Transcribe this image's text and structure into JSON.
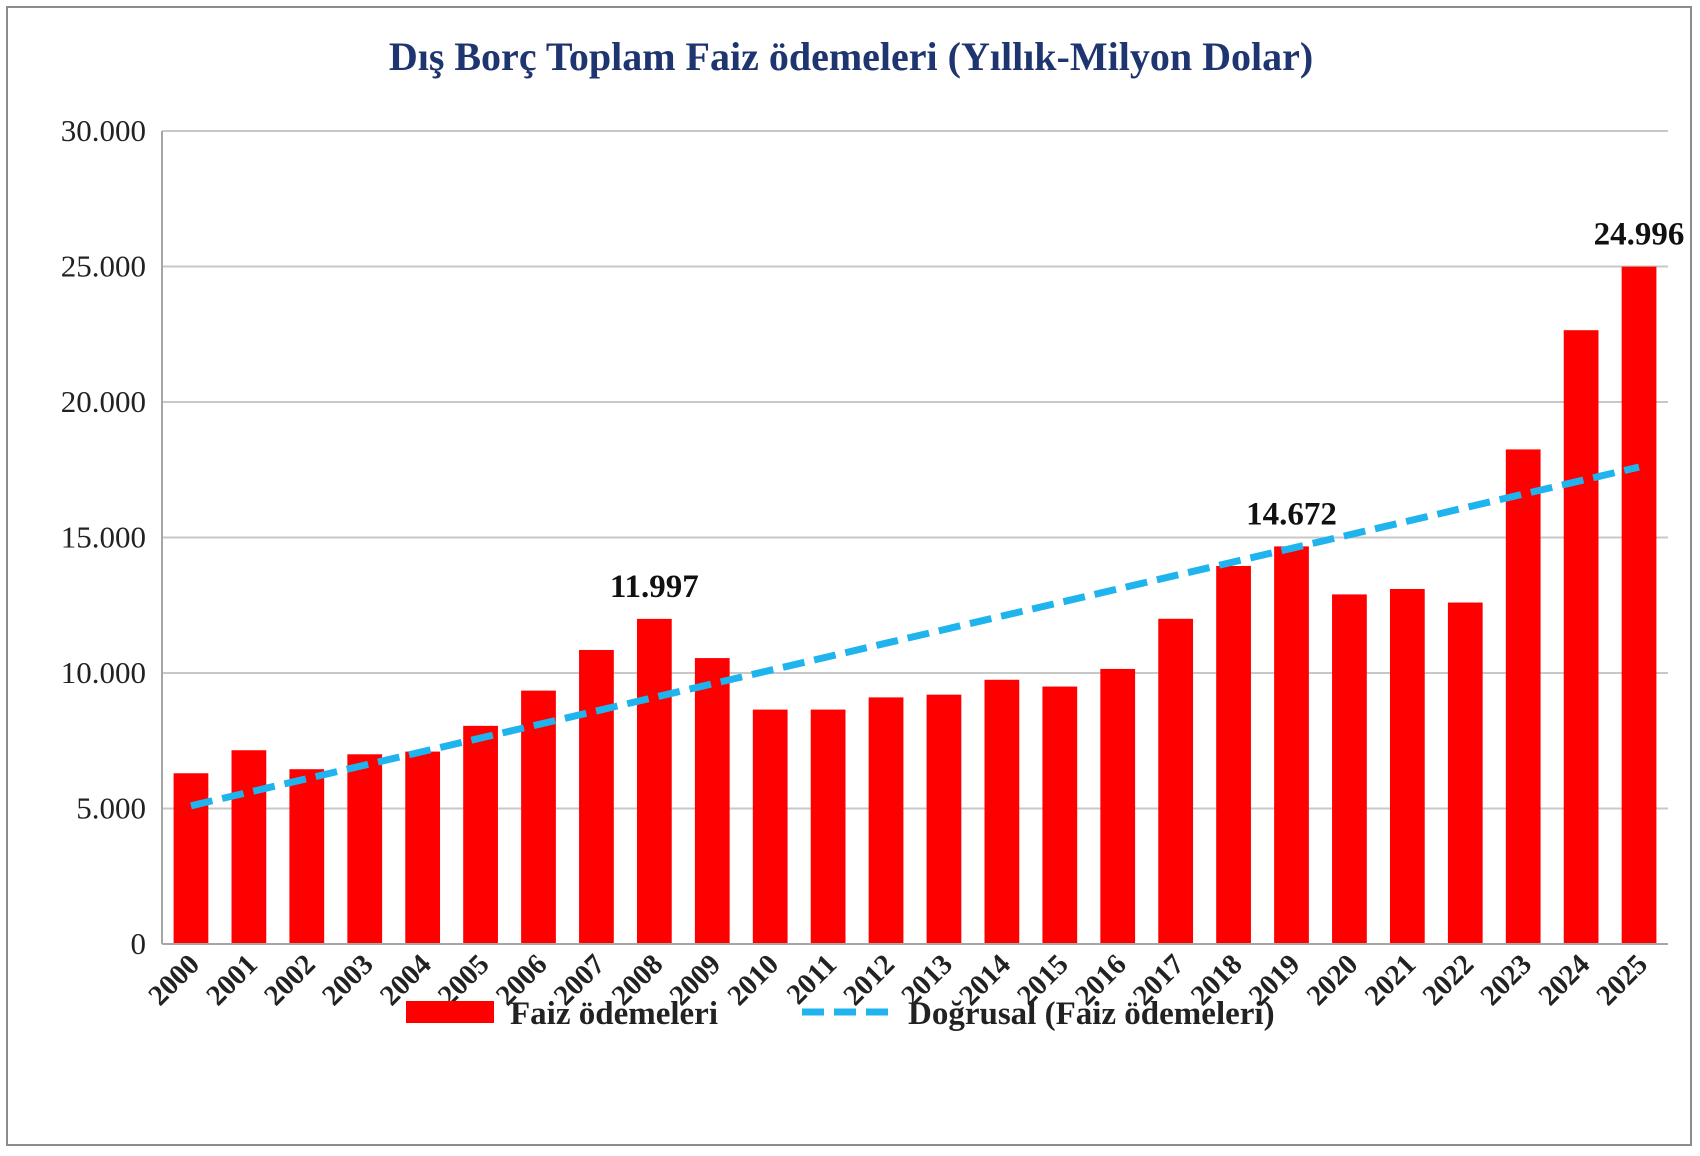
{
  "chart_data": {
    "type": "bar",
    "title": "Dış Borç Toplam Faiz ödemeleri (Yıllık-Milyon Dolar)",
    "categories": [
      "2000",
      "2001",
      "2002",
      "2003",
      "2004",
      "2005",
      "2006",
      "2007",
      "2008",
      "2009",
      "2010",
      "2011",
      "2012",
      "2013",
      "2014",
      "2015",
      "2016",
      "2017",
      "2018",
      "2019",
      "2020",
      "2021",
      "2022",
      "2023",
      "2024",
      "2025"
    ],
    "series": [
      {
        "name": "Faiz ödemeleri",
        "color": "#ff0000",
        "values": [
          6300,
          7150,
          6450,
          7000,
          7100,
          8050,
          9350,
          10850,
          11997,
          10550,
          8650,
          8650,
          9100,
          9200,
          9750,
          9500,
          10150,
          12000,
          13950,
          14672,
          12900,
          13100,
          12600,
          18250,
          22650,
          24996
        ]
      }
    ],
    "trendline": {
      "name": "Doğrusal (Faiz ödemeleri)",
      "color": "#1fb4ee",
      "style": "dashed",
      "start": 5100,
      "end": 17600
    },
    "data_labels": [
      {
        "category": "2008",
        "text": "11.997"
      },
      {
        "category": "2019",
        "text": "14.672"
      },
      {
        "category": "2025",
        "text": "24.996"
      }
    ],
    "ylim": [
      0,
      30000
    ],
    "yticks": [
      0,
      5000,
      10000,
      15000,
      20000,
      25000,
      30000
    ],
    "ytick_labels": [
      "0",
      "5.000",
      "10.000",
      "15.000",
      "20.000",
      "25.000",
      "30.000"
    ],
    "xlabel": "",
    "ylabel": "",
    "grid": true,
    "legend": "bottom"
  }
}
